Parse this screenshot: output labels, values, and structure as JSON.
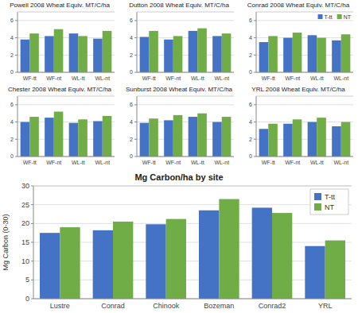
{
  "chart_data": [
    {
      "type": "bar",
      "title": "Powell 2008 Wheat Equiv. MT/C/ha",
      "categories": [
        "WF-tt",
        "WF-nt",
        "WL-tt",
        "WL-nt"
      ],
      "series": [
        {
          "color": "#4472c4",
          "values": [
            3.8,
            4.2,
            4.5,
            3.9
          ]
        },
        {
          "color": "#70ad47",
          "values": [
            4.5,
            5.0,
            4.2,
            4.8
          ]
        }
      ],
      "ylim": [
        0,
        7
      ],
      "yticks": [
        0,
        2,
        4,
        6
      ],
      "grid": true
    },
    {
      "type": "bar",
      "title": "Dutton 2008 Wheat Equiv. MT/C/ha",
      "categories": [
        "WF-tt",
        "WF-nt",
        "WL-tt",
        "WL-nt"
      ],
      "series": [
        {
          "color": "#4472c4",
          "values": [
            4.1,
            3.8,
            4.8,
            4.2
          ]
        },
        {
          "color": "#70ad47",
          "values": [
            4.8,
            4.2,
            5.1,
            4.5
          ]
        }
      ],
      "ylim": [
        0,
        7
      ],
      "yticks": [
        0,
        2,
        4,
        6
      ],
      "grid": true
    },
    {
      "type": "bar",
      "title": "Conrad 2008 Wheat Equiv. MT/C/ha",
      "categories": [
        "WF-tt",
        "WF-nt",
        "WL-tt",
        "WL-nt"
      ],
      "series": [
        {
          "name": "T-tt",
          "color": "#4472c4",
          "values": [
            3.5,
            4.0,
            4.3,
            3.7
          ]
        },
        {
          "name": "NT",
          "color": "#70ad47",
          "values": [
            4.2,
            4.6,
            4.0,
            4.4
          ]
        }
      ],
      "ylim": [
        0,
        7
      ],
      "yticks": [
        0,
        2,
        4,
        6
      ],
      "grid": true,
      "legend": "upper right"
    },
    {
      "type": "bar",
      "title": "Chester 2008 Wheat Equiv. MT/C/ha",
      "categories": [
        "WF-tt",
        "WF-nt",
        "WL-tt",
        "WL-nt"
      ],
      "series": [
        {
          "color": "#4472c4",
          "values": [
            4.0,
            4.5,
            3.9,
            4.1
          ]
        },
        {
          "color": "#70ad47",
          "values": [
            4.6,
            5.2,
            4.3,
            4.7
          ]
        }
      ],
      "ylim": [
        0,
        7
      ],
      "yticks": [
        0,
        2,
        4,
        6
      ],
      "grid": true
    },
    {
      "type": "bar",
      "title": "Sunburst 2008 Wheat Equiv. MT/C/ha",
      "categories": [
        "WF-tt",
        "WF-nt",
        "WL-tt",
        "WL-nt"
      ],
      "series": [
        {
          "color": "#4472c4",
          "values": [
            3.9,
            4.2,
            4.6,
            4.0
          ]
        },
        {
          "color": "#70ad47",
          "values": [
            4.4,
            4.8,
            5.0,
            4.6
          ]
        }
      ],
      "ylim": [
        0,
        7
      ],
      "yticks": [
        0,
        2,
        4,
        6
      ],
      "grid": true
    },
    {
      "type": "bar",
      "title": "YRL 2008 Wheat Equiv. MT/C/ha",
      "categories": [
        "WF-tt",
        "WF-nt",
        "WL-tt",
        "WL-nt"
      ],
      "series": [
        {
          "color": "#4472c4",
          "values": [
            3.2,
            3.8,
            4.0,
            3.5
          ]
        },
        {
          "color": "#70ad47",
          "values": [
            3.8,
            4.3,
            4.5,
            4.0
          ]
        }
      ],
      "ylim": [
        0,
        7
      ],
      "yticks": [
        0,
        2,
        4,
        6
      ],
      "grid": true
    },
    {
      "type": "bar",
      "title": "Mg Carbon/ha by site",
      "y_label": "Mg Carbon (0-30)",
      "categories": [
        "Lustre",
        "Conrad",
        "Chinook",
        "Bozeman",
        "Conrad2",
        "YRL"
      ],
      "series": [
        {
          "name": "T-tt",
          "color": "#4472c4",
          "values": [
            17.5,
            18.2,
            19.8,
            23.5,
            24.2,
            14.0
          ]
        },
        {
          "name": "NT",
          "color": "#70ad47",
          "values": [
            19.0,
            20.5,
            21.2,
            26.5,
            22.8,
            15.5
          ]
        }
      ],
      "ylim": [
        0,
        30
      ],
      "yticks": [
        0,
        5,
        10,
        15,
        20,
        25,
        30
      ],
      "grid": true,
      "legend": "upper right"
    }
  ]
}
